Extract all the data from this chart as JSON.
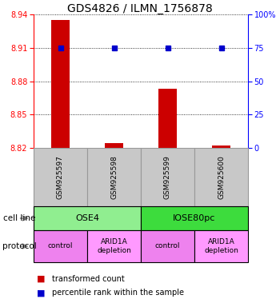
{
  "title": "GDS4826 / ILMN_1756878",
  "samples": [
    "GSM925597",
    "GSM925598",
    "GSM925599",
    "GSM925600"
  ],
  "red_values": [
    8.935,
    8.824,
    8.873,
    8.822
  ],
  "blue_values": [
    8.91,
    8.91,
    8.91,
    8.91
  ],
  "ylim_left": [
    8.82,
    8.94
  ],
  "ylim_right": [
    0,
    100
  ],
  "yticks_left": [
    8.82,
    8.85,
    8.88,
    8.91,
    8.94
  ],
  "yticks_right": [
    0,
    25,
    50,
    75,
    100
  ],
  "ytick_labels_left": [
    "8.82",
    "8.85",
    "8.88",
    "8.91",
    "8.94"
  ],
  "ytick_labels_right": [
    "0",
    "25",
    "50",
    "75",
    "100%"
  ],
  "cell_line_groups": [
    {
      "label": "OSE4",
      "span": [
        0,
        2
      ],
      "color": "#90EE90"
    },
    {
      "label": "IOSE80pc",
      "span": [
        2,
        4
      ],
      "color": "#3DDC3D"
    }
  ],
  "protocol_groups": [
    {
      "label": "control",
      "span": [
        0,
        1
      ],
      "color": "#EE82EE"
    },
    {
      "label": "ARID1A\ndepletion",
      "span": [
        1,
        2
      ],
      "color": "#FF99FF"
    },
    {
      "label": "control",
      "span": [
        2,
        3
      ],
      "color": "#EE82EE"
    },
    {
      "label": "ARID1A\ndepletion",
      "span": [
        3,
        4
      ],
      "color": "#FF99FF"
    }
  ],
  "red_color": "#CC0000",
  "blue_color": "#0000CC",
  "bar_base": 8.82,
  "sample_box_color": "#C8C8C8",
  "sample_box_border": "#999999",
  "grid_color": "#000000",
  "legend_red_label": "transformed count",
  "legend_blue_label": "percentile rank within the sample",
  "fig_width": 3.5,
  "fig_height": 3.84,
  "dpi": 100
}
